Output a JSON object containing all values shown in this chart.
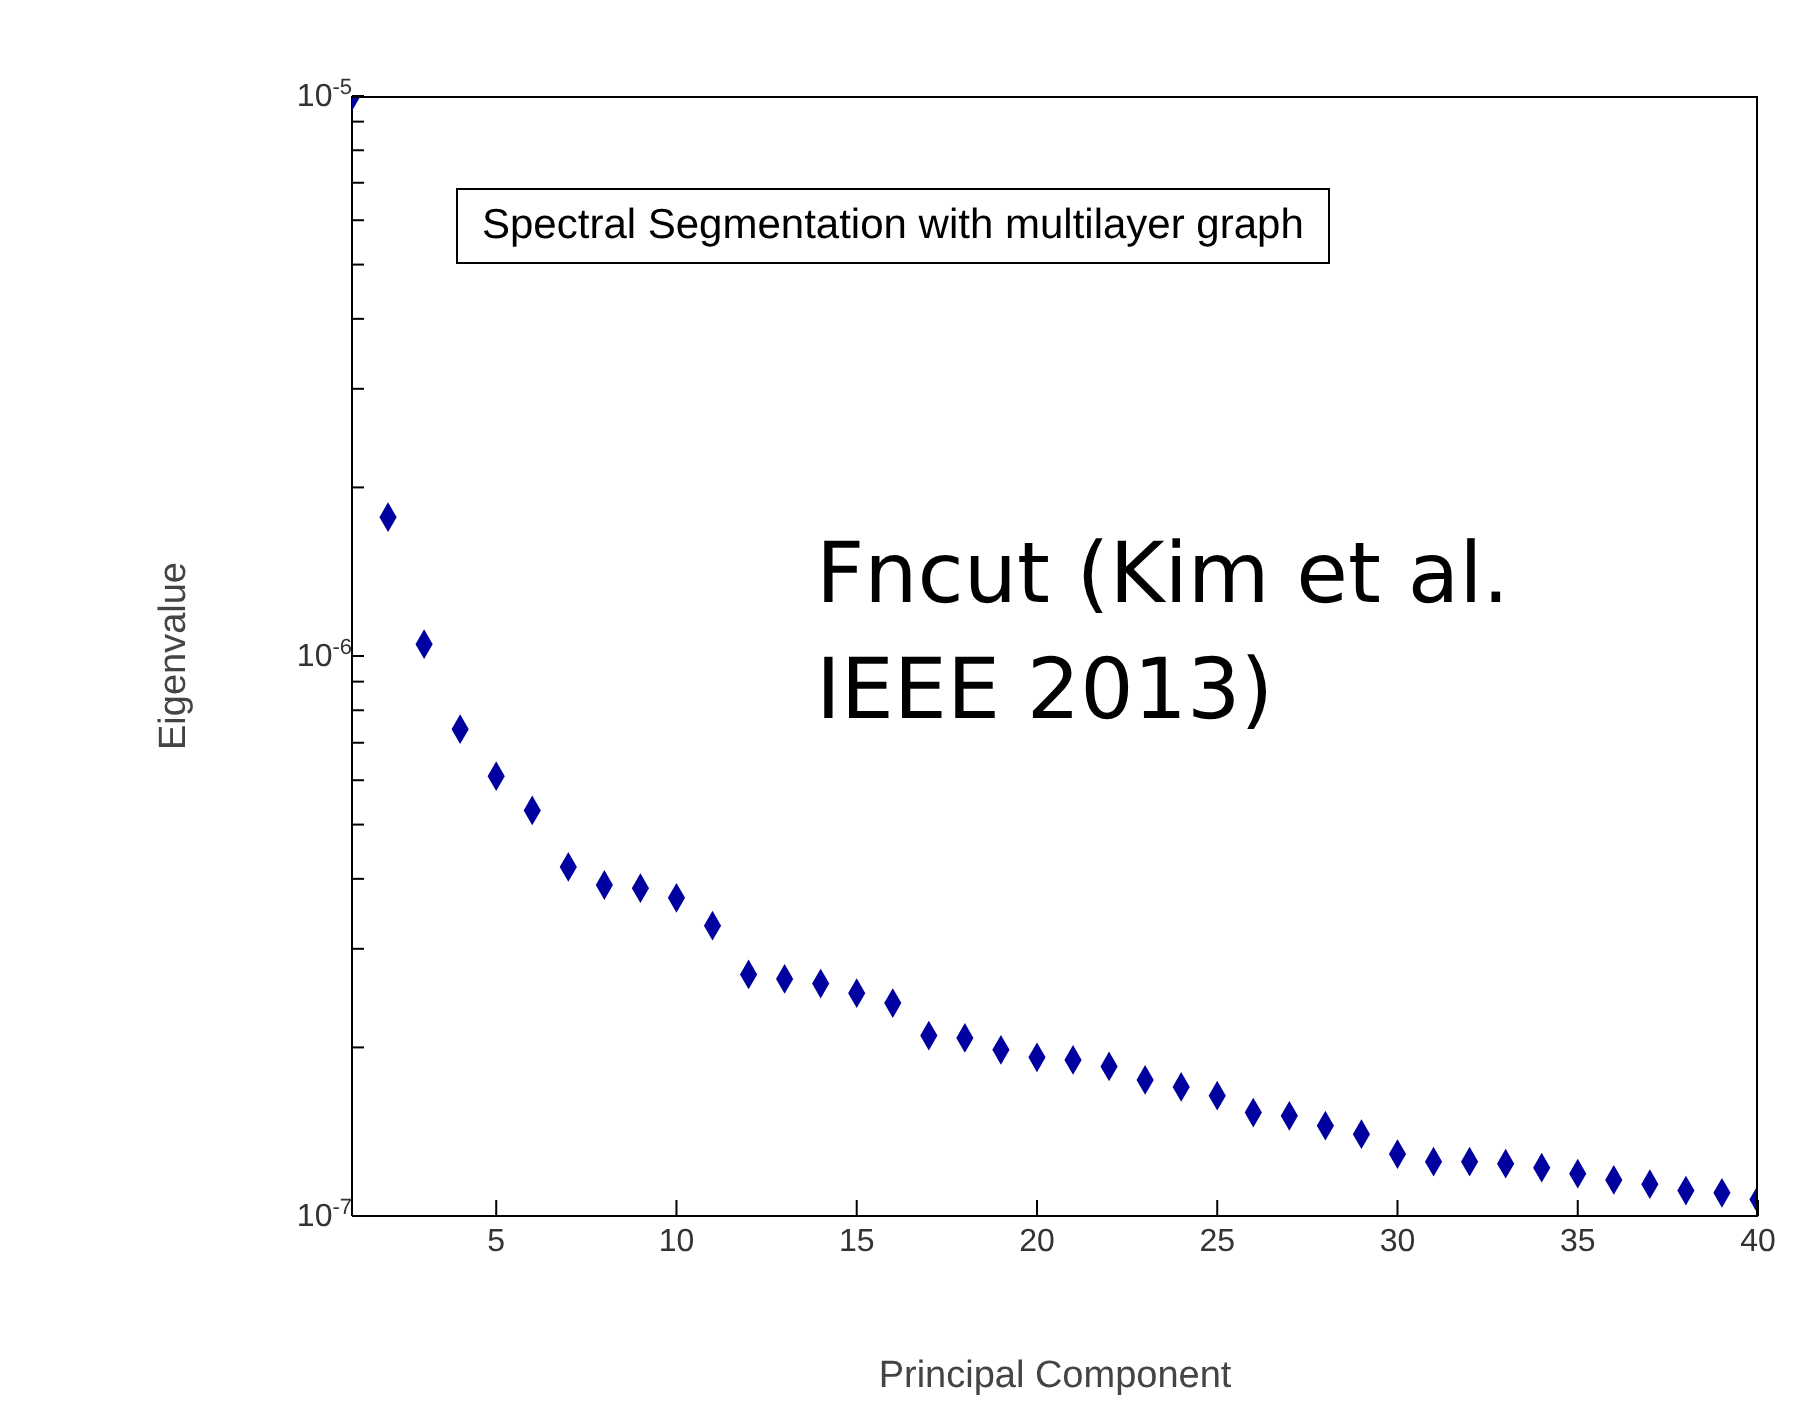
{
  "chart_data": {
    "type": "scatter",
    "title": "Spectral Segmentation with multilayer graph",
    "xlabel": "Principal Component",
    "ylabel": "Eigenvalue",
    "annotations": [
      "Fncut (Kim et al. IEEE 2013)"
    ],
    "log": "y",
    "marker": "diamond",
    "xlim": [
      1,
      40
    ],
    "xticks": [
      5,
      10,
      15,
      20,
      25,
      30,
      35,
      40
    ],
    "ylim": [
      1e-07,
      1e-05
    ],
    "yticks": [
      {
        "value": 1e-07,
        "label": "10$^{-7}$"
      },
      {
        "value": 2e-07,
        "label": null
      },
      {
        "value": 3e-07,
        "label": null
      },
      {
        "value": 4e-07,
        "label": null
      },
      {
        "value": 5e-07,
        "label": null
      },
      {
        "value": 6e-07,
        "label": null
      },
      {
        "value": 7e-07,
        "label": null
      },
      {
        "value": 8e-07,
        "label": null
      },
      {
        "value": 9e-07,
        "label": null
      },
      {
        "value": 1e-06,
        "label": "10$^{-6}$"
      },
      {
        "value": 2e-06,
        "label": null
      },
      {
        "value": 3e-06,
        "label": null
      },
      {
        "value": 4e-06,
        "label": null
      },
      {
        "value": 5e-06,
        "label": null
      },
      {
        "value": 6e-06,
        "label": null
      },
      {
        "value": 7e-06,
        "label": null
      },
      {
        "value": 8e-06,
        "label": null
      },
      {
        "value": 9e-06,
        "label": null
      },
      {
        "value": 1e-05,
        "label": "10$^{-5}$"
      }
    ],
    "x": [
      1,
      2,
      3,
      4,
      5,
      6,
      7,
      8,
      9,
      10,
      11,
      12,
      13,
      14,
      15,
      16,
      17,
      18,
      19,
      20,
      21,
      22,
      23,
      24,
      25,
      26,
      27,
      28,
      29,
      30,
      31,
      32,
      33,
      34,
      35,
      36,
      37,
      38,
      39,
      40
    ],
    "series": [
      {
        "color": "#0000a0",
        "values": [
          1e-05,
          1.77e-06,
          1.05e-06,
          7.4e-07,
          6.1e-07,
          5.3e-07,
          4.2e-07,
          3.9e-07,
          3.85e-07,
          3.7e-07,
          3.3e-07,
          2.7e-07,
          2.65e-07,
          2.6e-07,
          2.5e-07,
          2.4e-07,
          2.1e-07,
          2.08e-07,
          1.98e-07,
          1.92e-07,
          1.9e-07,
          1.85e-07,
          1.75e-07,
          1.7e-07,
          1.64e-07,
          1.53e-07,
          1.51e-07,
          1.45e-07,
          1.4e-07,
          1.29e-07,
          1.25e-07,
          1.25e-07,
          1.24e-07,
          1.22e-07,
          1.19e-07,
          1.16e-07,
          1.14e-07,
          1.11e-07,
          1.1e-07,
          1.07e-07
        ]
      }
    ]
  }
}
